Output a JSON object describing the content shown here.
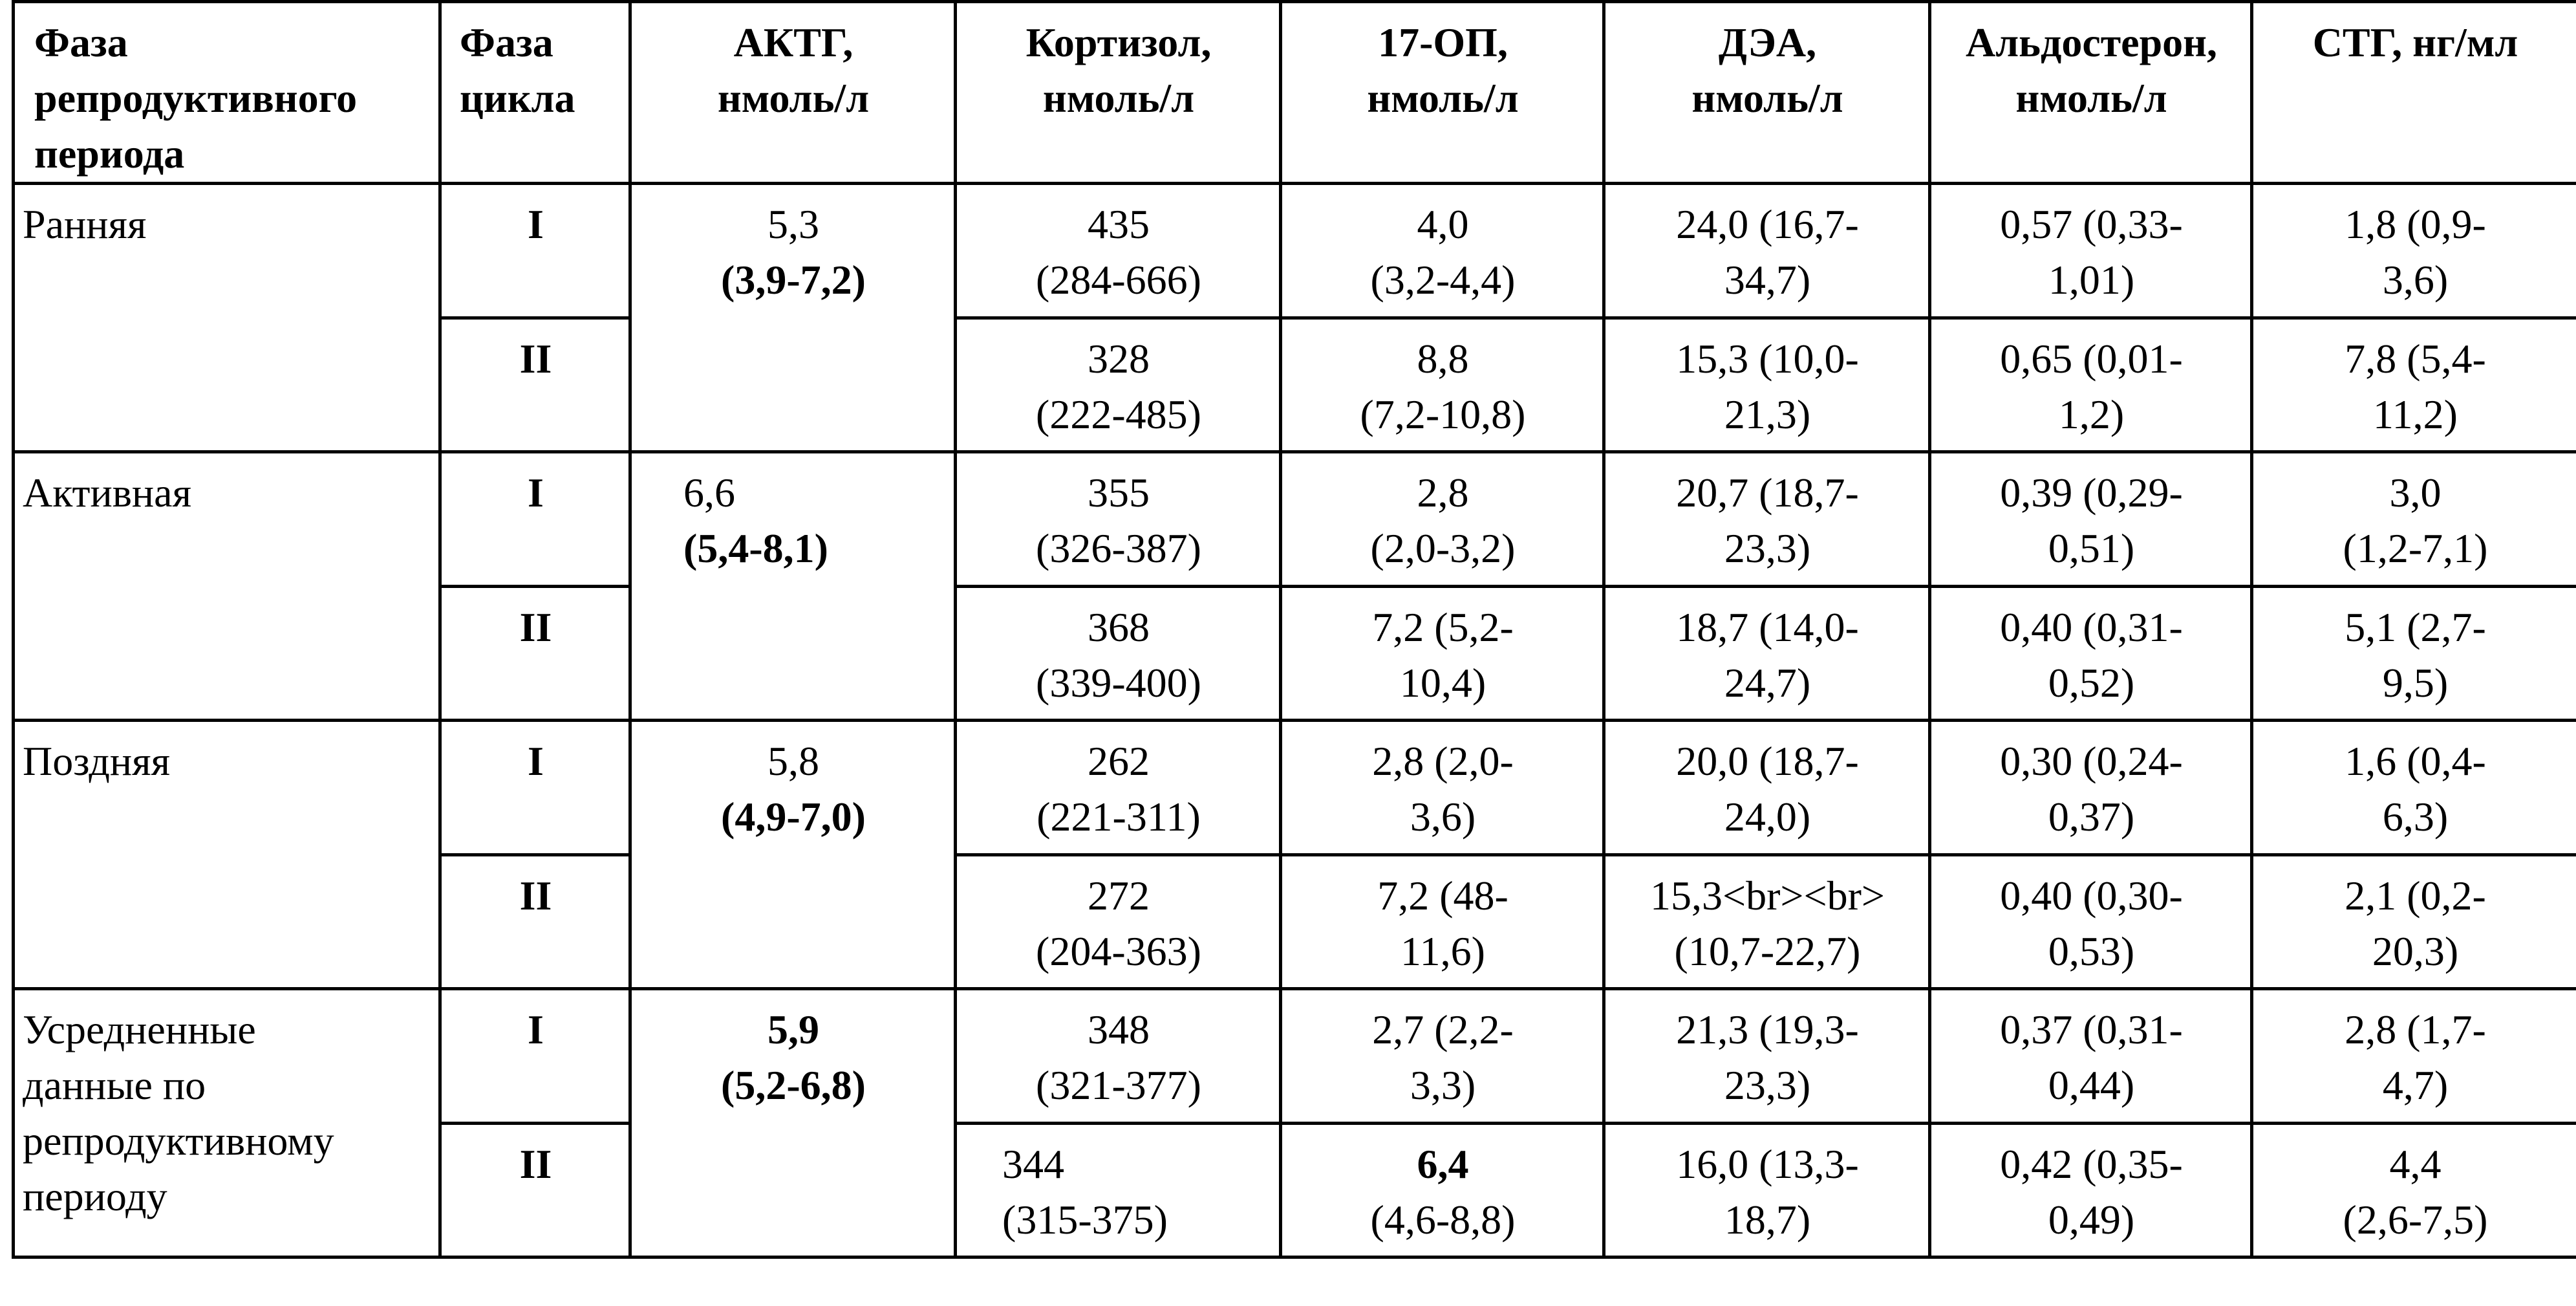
{
  "headers": [
    [
      "Фаза",
      "репродуктивного",
      "периода"
    ],
    [
      "Фаза",
      "цикла"
    ],
    [
      "АКТГ,",
      "нмоль/л"
    ],
    [
      "Кортизол,",
      "нмоль/л"
    ],
    [
      "17-ОП,",
      "нмоль/л"
    ],
    [
      "ДЭА,",
      "нмоль/л"
    ],
    [
      "Альдостерон,",
      "нмоль/л"
    ],
    [
      "СТГ, нг/мл"
    ]
  ],
  "groups": [
    {
      "phase": [
        "Ранняя"
      ],
      "actg": {
        "line1": "5,3",
        "line2": "(3,9-7,2)",
        "line1_bold": false
      },
      "rows": [
        {
          "cycle": "I",
          "cortisol": [
            "435",
            "(284-666)"
          ],
          "op17": [
            "4,0",
            "(3,2-4,4)"
          ],
          "dea": [
            "24,0 (16,7-",
            "34,7)"
          ],
          "aldo": [
            "0,57 (0,33-",
            "1,01)"
          ],
          "stg": [
            "1,8 (0,9-",
            "3,6)"
          ]
        },
        {
          "cycle": "II",
          "cortisol": [
            "328",
            "(222-485)"
          ],
          "op17": [
            "8,8",
            "(7,2-10,8)"
          ],
          "dea": [
            "15,3 (10,0-",
            "21,3)"
          ],
          "aldo": [
            "0,65 (0,01-",
            "1,2)"
          ],
          "stg": [
            "7,8 (5,4-",
            "11,2)"
          ]
        }
      ]
    },
    {
      "phase": [
        "Активная"
      ],
      "actg": {
        "line1": "6,6",
        "line2": "(5,4-8,1)",
        "line1_bold": false
      },
      "rows": [
        {
          "cycle": "I",
          "cortisol": [
            "355",
            "(326-387)"
          ],
          "op17": [
            "2,8",
            "(2,0-3,2)"
          ],
          "dea": [
            "20,7 (18,7-",
            "23,3)"
          ],
          "aldo": [
            "0,39 (0,29-",
            "0,51)"
          ],
          "stg": [
            "3,0",
            "(1,2-7,1)"
          ]
        },
        {
          "cycle": "II",
          "cortisol": [
            "368",
            "(339-400)"
          ],
          "op17": [
            "7,2 (5,2-",
            "10,4)"
          ],
          "dea": [
            "18,7 (14,0-",
            "24,7)"
          ],
          "aldo": [
            "0,40 (0,31-",
            "0,52)"
          ],
          "stg": [
            "5,1 (2,7-",
            "9,5)"
          ]
        }
      ]
    },
    {
      "phase": [
        "Поздняя"
      ],
      "actg": {
        "line1": "5,8",
        "line2": "(4,9-7,0)",
        "line1_bold": false
      },
      "rows": [
        {
          "cycle": "I",
          "cortisol": [
            "262",
            "(221-311)"
          ],
          "op17": [
            "2,8 (2,0-",
            "3,6)"
          ],
          "dea": [
            "20,0 (18,7-",
            "24,0)"
          ],
          "aldo": [
            "0,30 (0,24-",
            "0,37)"
          ],
          "stg": [
            "1,6 (0,4-",
            "6,3)"
          ]
        },
        {
          "cycle": "II",
          "cortisol": [
            "272",
            "(204-363)"
          ],
          "op17": [
            "7,2 (48-",
            "11,6)"
          ],
          "dea": [
            "15,3<br><br>",
            "(10,7-22,7)"
          ],
          "aldo": [
            "0,40 (0,30-",
            "0,53)"
          ],
          "stg": [
            "2,1 (0,2-",
            "20,3)"
          ]
        }
      ]
    },
    {
      "phase": [
        "Усредненные",
        "данные по",
        "репродуктивному",
        "периоду"
      ],
      "actg": {
        "line1": "5,9",
        "line2": "(5,2-6,8)",
        "line1_bold": true
      },
      "rows": [
        {
          "cycle": "I",
          "cortisol": [
            "348",
            "(321-377)"
          ],
          "op17": [
            "2,7 (2,2-",
            "3,3)"
          ],
          "dea": [
            "21,3 (19,3-",
            "23,3)"
          ],
          "aldo": [
            "0,37 (0,31-",
            "0,44)"
          ],
          "stg": [
            "2,8 (1,7-",
            "4,7)"
          ]
        },
        {
          "cycle": "II",
          "cortisol": [
            "344",
            "(315-375)"
          ],
          "op17": [
            "6,4",
            "(4,6-8,8)"
          ],
          "op17_line1_bold": true,
          "dea": [
            "16,0 (13,3-",
            "18,7)"
          ],
          "aldo": [
            "0,42 (0,35-",
            "0,49)"
          ],
          "stg": [
            "4,4",
            "(2,6-7,5)"
          ]
        }
      ]
    }
  ]
}
